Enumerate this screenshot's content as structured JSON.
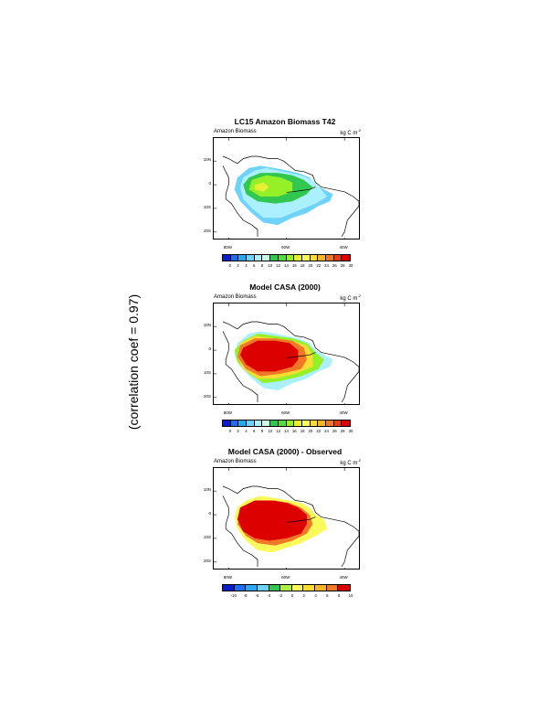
{
  "side_note": "(correlation coef = 0.97)",
  "panels": [
    {
      "title": "LC15 Amazon Biomass T42",
      "left_label": "Amazon Biomass",
      "units": "kg C m",
      "units_sup": "-2",
      "lat_labels": [
        "10N",
        "0",
        "10S",
        "20S"
      ],
      "lon_labels": [
        "80W",
        "60W",
        "40W"
      ],
      "colorbar_labels": [
        "0",
        "2",
        "4",
        "6",
        "8",
        "10",
        "12",
        "14",
        "16",
        "18",
        "20",
        "22",
        "24",
        "26",
        "28",
        "30"
      ],
      "field": "observed"
    },
    {
      "title": "Model CASA (2000)",
      "left_label": "Amazon Biomass",
      "units": "kg C m",
      "units_sup": "-2",
      "lat_labels": [
        "10N",
        "0",
        "10S",
        "20S"
      ],
      "lon_labels": [
        "80W",
        "60W",
        "40W"
      ],
      "colorbar_labels": [
        "0",
        "2",
        "4",
        "6",
        "8",
        "10",
        "12",
        "14",
        "16",
        "18",
        "20",
        "22",
        "24",
        "26",
        "28",
        "30"
      ],
      "field": "model"
    },
    {
      "title": "Model CASA (2000) - Observed",
      "left_label": "Amazon Biomass",
      "units": "kg C m",
      "units_sup": "-2",
      "lat_labels": [
        "10N",
        "0",
        "10S",
        "20S"
      ],
      "lon_labels": [
        "80W",
        "60W",
        "40W"
      ],
      "colorbar_labels": [
        "-10",
        "-8",
        "-6",
        "-4",
        "-2",
        "0",
        "2",
        "4",
        "6",
        "8",
        "10"
      ],
      "field": "difference"
    }
  ],
  "palette_abs": [
    "#0a1ec8",
    "#1e6ef0",
    "#28a8f0",
    "#6ed2fa",
    "#aaf0ff",
    "#c8fae6",
    "#32c850",
    "#50dc3c",
    "#96f028",
    "#e6f032",
    "#fafa5a",
    "#fadc32",
    "#fab428",
    "#f07828",
    "#e63c1e",
    "#dc0000"
  ],
  "palette_diff": [
    "#0a1ec8",
    "#1e6ef0",
    "#28a8f0",
    "#6ed2fa",
    "#32c850",
    "#aaf03c",
    "#fafa5a",
    "#fadc32",
    "#fab428",
    "#f07828",
    "#dc0000"
  ]
}
